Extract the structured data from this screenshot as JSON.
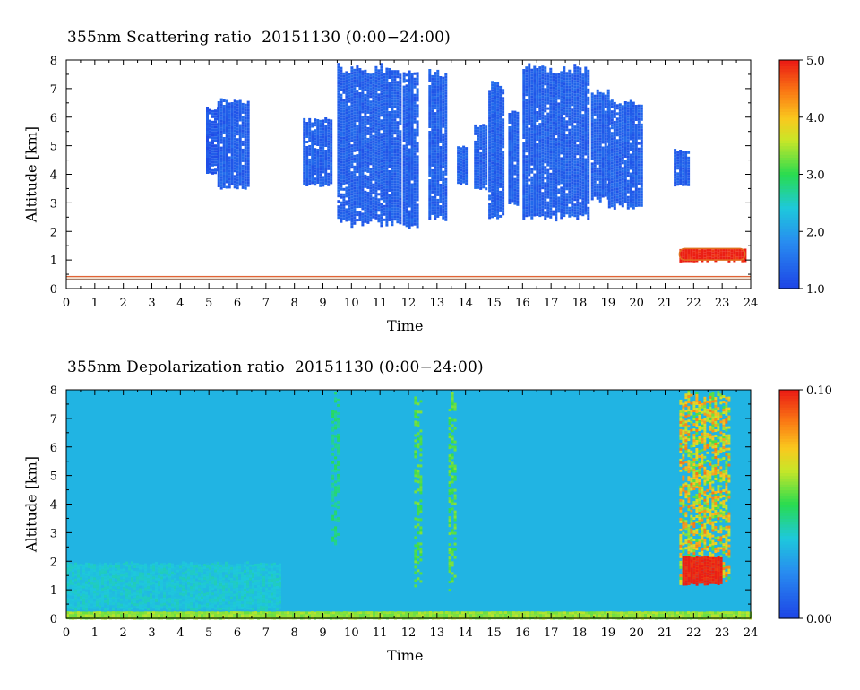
{
  "chart_data": [
    {
      "type": "heatmap",
      "title": "355nm Scattering ratio",
      "date": "20151130",
      "time_range": "(0:00−24:00)",
      "xlabel": "Time",
      "ylabel": "Altitude [km]",
      "xlim": [
        0,
        24
      ],
      "ylim": [
        0,
        8
      ],
      "x_ticks": [
        "0",
        "1",
        "2",
        "3",
        "4",
        "5",
        "6",
        "7",
        "8",
        "9",
        "10",
        "11",
        "12",
        "13",
        "14",
        "15",
        "16",
        "17",
        "18",
        "19",
        "20",
        "21",
        "22",
        "23",
        "24"
      ],
      "y_ticks": [
        "0",
        "1",
        "2",
        "3",
        "4",
        "5",
        "6",
        "7",
        "8"
      ],
      "colorbar": {
        "range": [
          1.0,
          5.0
        ],
        "tick_labels": [
          "1.0",
          "2.0",
          "3.0",
          "4.0",
          "5.0"
        ],
        "tick_values": [
          1.0,
          2.0,
          3.0,
          4.0,
          5.0
        ]
      },
      "background_color": "#ffffff",
      "features": [
        {
          "kind": "cloud",
          "time_start": 9.5,
          "time_end": 11.7,
          "alt_base": 2.2,
          "alt_top": 7.9,
          "value": 1.3
        },
        {
          "kind": "cloud",
          "time_start": 8.3,
          "time_end": 9.3,
          "alt_base": 3.6,
          "alt_top": 6.0,
          "value": 1.3
        },
        {
          "kind": "cloud",
          "time_start": 12.7,
          "time_end": 13.3,
          "alt_base": 2.4,
          "alt_top": 7.8,
          "value": 1.3
        },
        {
          "kind": "cloud",
          "time_start": 11.8,
          "time_end": 12.3,
          "alt_base": 2.1,
          "alt_top": 7.9,
          "value": 1.3
        },
        {
          "kind": "cloud",
          "time_start": 13.7,
          "time_end": 14.0,
          "alt_base": 3.7,
          "alt_top": 5.0,
          "value": 1.3
        },
        {
          "kind": "cloud",
          "time_start": 14.3,
          "time_end": 14.7,
          "alt_base": 3.5,
          "alt_top": 5.8,
          "value": 1.3
        },
        {
          "kind": "cloud",
          "time_start": 14.8,
          "time_end": 15.3,
          "alt_base": 2.4,
          "alt_top": 7.3,
          "value": 1.3
        },
        {
          "kind": "cloud",
          "time_start": 15.5,
          "time_end": 15.8,
          "alt_base": 2.9,
          "alt_top": 6.4,
          "value": 1.3
        },
        {
          "kind": "cloud",
          "time_start": 16.0,
          "time_end": 18.3,
          "alt_base": 2.4,
          "alt_top": 7.9,
          "value": 1.3
        },
        {
          "kind": "cloud",
          "time_start": 18.4,
          "time_end": 19.0,
          "alt_base": 3.1,
          "alt_top": 7.0,
          "value": 1.3
        },
        {
          "kind": "cloud",
          "time_start": 19.0,
          "time_end": 20.2,
          "alt_base": 2.8,
          "alt_top": 6.7,
          "value": 1.3
        },
        {
          "kind": "cloud",
          "time_start": 21.3,
          "time_end": 21.8,
          "alt_base": 3.6,
          "alt_top": 4.9,
          "value": 1.3
        },
        {
          "kind": "cloud",
          "time_start": 5.3,
          "time_end": 6.4,
          "alt_base": 3.5,
          "alt_top": 6.7,
          "value": 1.3
        },
        {
          "kind": "cloud",
          "time_start": 4.9,
          "time_end": 5.3,
          "alt_base": 4.0,
          "alt_top": 6.4,
          "value": 1.2
        },
        {
          "kind": "low_layer",
          "time_start": 21.5,
          "time_end": 23.8,
          "alt_base": 1.0,
          "alt_top": 1.4,
          "value": 5.0
        },
        {
          "kind": "near_surface",
          "time_start": 0,
          "time_end": 24,
          "alt_base": 0.3,
          "alt_top": 0.45,
          "value": 5.0
        }
      ]
    },
    {
      "type": "heatmap",
      "title": "355nm Depolarization ratio",
      "date": "20151130",
      "time_range": "(0:00−24:00)",
      "xlabel": "Time",
      "ylabel": "Altitude [km]",
      "xlim": [
        0,
        24
      ],
      "ylim": [
        0,
        8
      ],
      "x_ticks": [
        "0",
        "1",
        "2",
        "3",
        "4",
        "5",
        "6",
        "7",
        "8",
        "9",
        "10",
        "11",
        "12",
        "13",
        "14",
        "15",
        "16",
        "17",
        "18",
        "19",
        "20",
        "21",
        "22",
        "23",
        "24"
      ],
      "y_ticks": [
        "0",
        "1",
        "2",
        "3",
        "4",
        "5",
        "6",
        "7",
        "8"
      ],
      "colorbar": {
        "range": [
          0.0,
          0.1
        ],
        "tick_labels": [
          "0.00",
          "0.10"
        ],
        "tick_values": [
          0.0,
          0.1
        ]
      },
      "background_value": 0.03,
      "features": [
        {
          "kind": "surface_layer",
          "time_start": 0,
          "time_end": 24,
          "alt_base": 0.0,
          "alt_top": 0.25,
          "value": 0.06
        },
        {
          "kind": "boundary_layer",
          "time_start": 0,
          "time_end": 7.5,
          "alt_base": 0.3,
          "alt_top": 2.0,
          "value": 0.035
        },
        {
          "kind": "ice_cloud",
          "time_start": 21.5,
          "time_end": 23.2,
          "alt_base": 1.2,
          "alt_top": 8.0,
          "value": 0.07
        },
        {
          "kind": "ice_cloud_base",
          "time_start": 21.6,
          "time_end": 23.0,
          "alt_base": 1.2,
          "alt_top": 2.2,
          "value": 0.1
        },
        {
          "kind": "streak",
          "time_start": 12.2,
          "time_end": 12.4,
          "alt_base": 1.0,
          "alt_top": 8.0,
          "value": 0.055
        },
        {
          "kind": "streak",
          "time_start": 13.4,
          "time_end": 13.6,
          "alt_base": 1.0,
          "alt_top": 8.0,
          "value": 0.055
        },
        {
          "kind": "streak",
          "time_start": 9.3,
          "time_end": 9.5,
          "alt_base": 2.5,
          "alt_top": 8.0,
          "value": 0.045
        }
      ]
    }
  ]
}
